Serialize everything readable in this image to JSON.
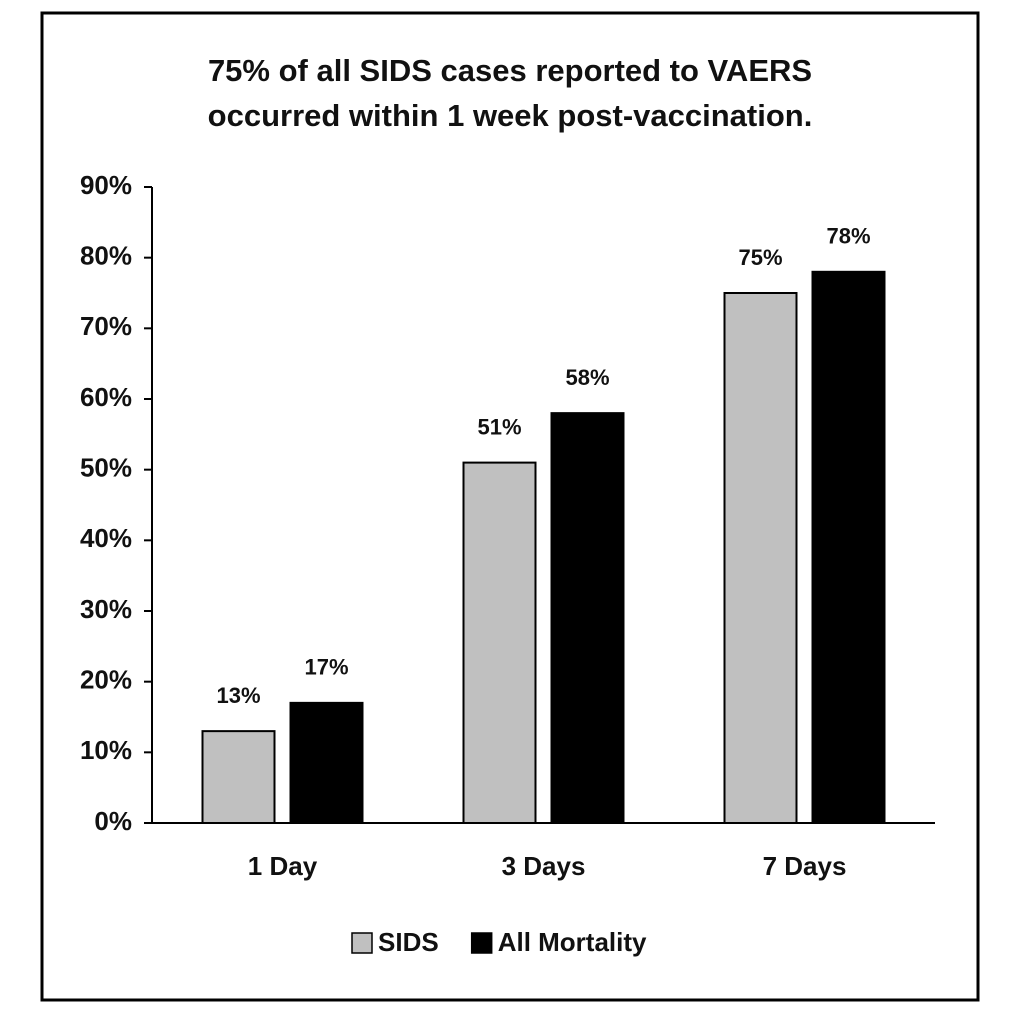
{
  "chart_data": {
    "type": "bar",
    "title": [
      "75% of all SIDS cases reported to VAERS",
      "occurred within 1 week post-vaccination."
    ],
    "categories": [
      "1 Day",
      "3 Days",
      "7 Days"
    ],
    "series": [
      {
        "name": "SIDS",
        "color": "#c0c0c0",
        "values": [
          13,
          51,
          75
        ],
        "value_labels": [
          "13%",
          "51%",
          "75%"
        ]
      },
      {
        "name": "All Mortality",
        "color": "#000000",
        "values": [
          17,
          58,
          78
        ],
        "value_labels": [
          "17%",
          "58%",
          "78%"
        ]
      }
    ],
    "ylim": [
      0,
      90
    ],
    "yticks": [
      {
        "value": 0,
        "label": "0%"
      },
      {
        "value": 10,
        "label": "10%"
      },
      {
        "value": 20,
        "label": "20%"
      },
      {
        "value": 30,
        "label": "30%"
      },
      {
        "value": 40,
        "label": "40%"
      },
      {
        "value": 50,
        "label": "50%"
      },
      {
        "value": 60,
        "label": "60%"
      },
      {
        "value": 70,
        "label": "70%"
      },
      {
        "value": 80,
        "label": "80%"
      },
      {
        "value": 90,
        "label": "90%"
      }
    ],
    "legend": "bottom"
  }
}
